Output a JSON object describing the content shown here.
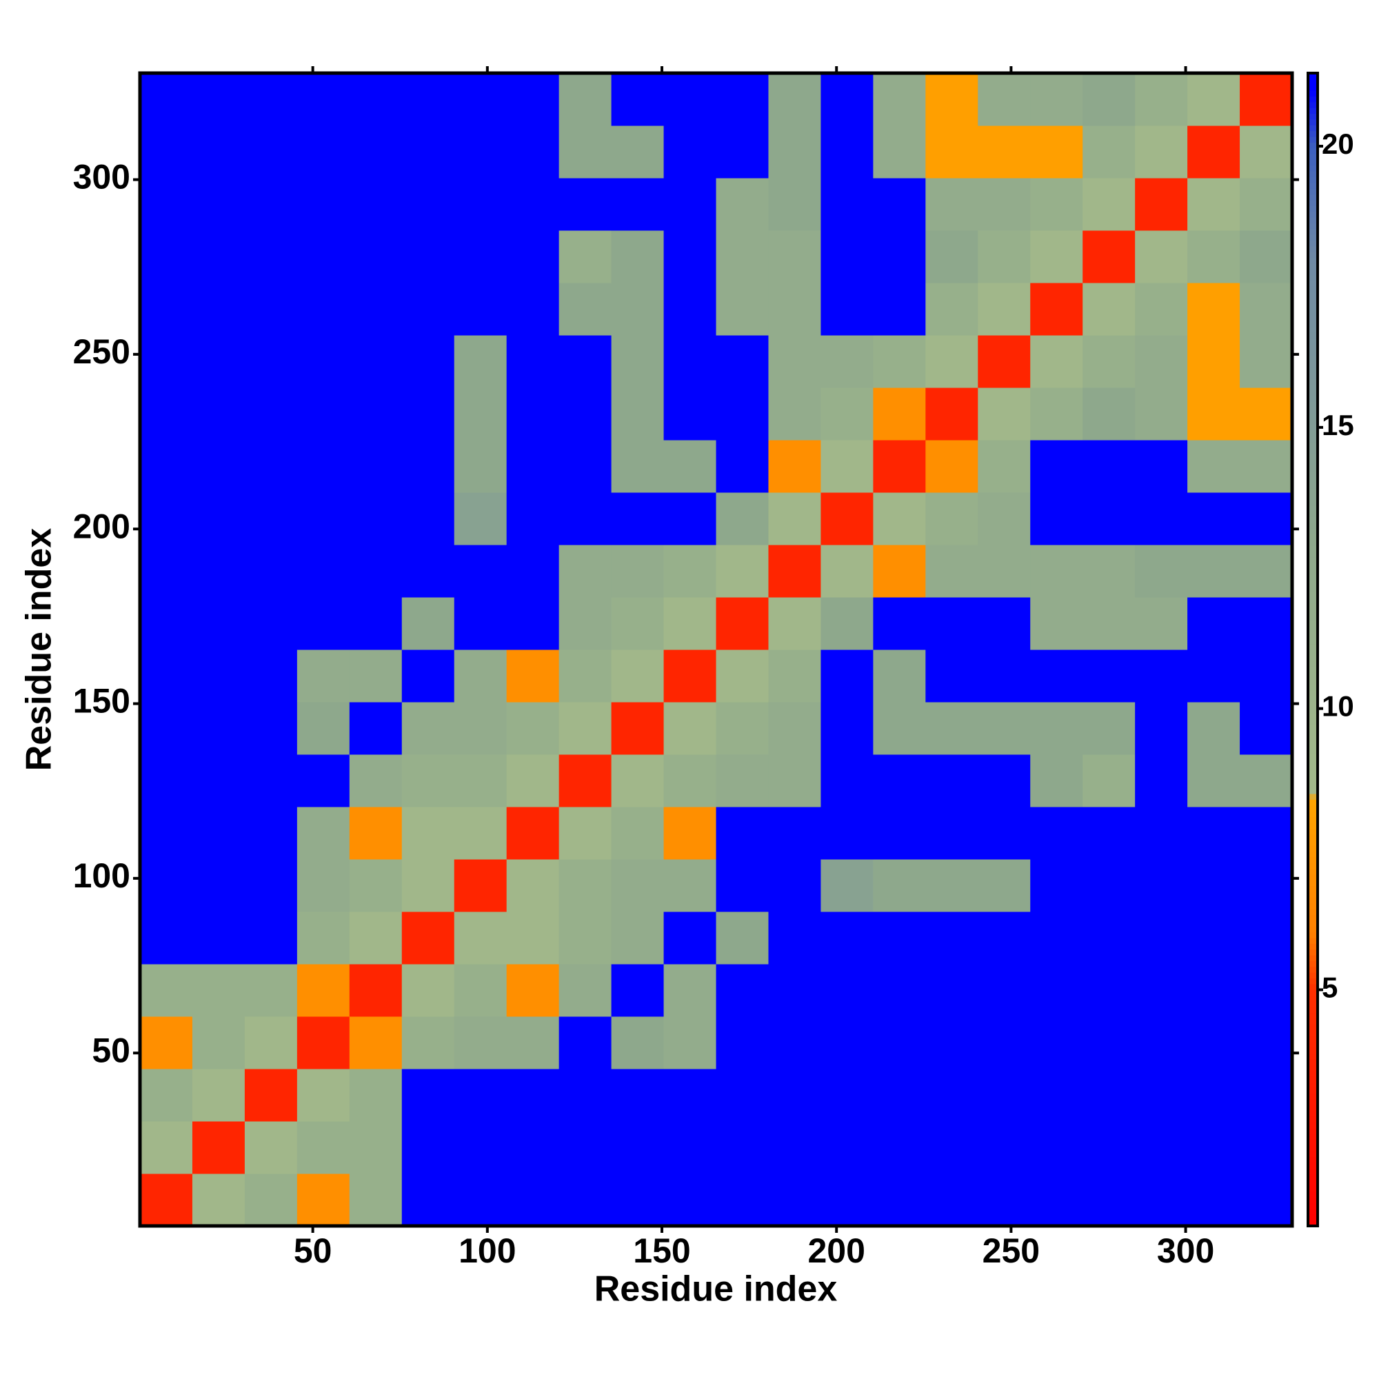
{
  "chart_data": {
    "type": "heatmap",
    "xlabel": "Residue index",
    "ylabel": "Residue index",
    "x": [
      1,
      16,
      31,
      46,
      61,
      76,
      91,
      106,
      121,
      136,
      151,
      166,
      181,
      196,
      211,
      226,
      241,
      256,
      271,
      286,
      301,
      316
    ],
    "y": [
      1,
      16,
      31,
      46,
      61,
      76,
      91,
      106,
      121,
      136,
      151,
      166,
      181,
      196,
      211,
      226,
      241,
      256,
      271,
      286,
      301,
      316
    ],
    "z": [
      [
        4,
        9,
        11,
        7,
        11,
        21,
        21,
        21,
        21,
        21,
        21,
        21,
        21,
        21,
        21,
        21,
        21,
        21,
        21,
        21,
        21,
        21
      ],
      [
        9,
        4,
        9,
        11,
        11,
        21,
        21,
        21,
        21,
        21,
        21,
        21,
        21,
        21,
        21,
        21,
        21,
        21,
        21,
        21,
        21,
        21
      ],
      [
        11,
        9,
        4,
        9,
        11,
        21,
        21,
        21,
        21,
        21,
        21,
        21,
        21,
        21,
        21,
        21,
        21,
        21,
        21,
        21,
        21,
        21
      ],
      [
        7,
        11,
        9,
        4,
        7,
        11,
        12,
        12,
        21,
        13,
        12,
        21,
        21,
        21,
        21,
        21,
        21,
        21,
        21,
        21,
        21,
        21
      ],
      [
        11,
        11,
        11,
        7,
        4,
        9,
        11,
        7,
        12,
        21,
        12,
        21,
        21,
        21,
        21,
        21,
        21,
        21,
        21,
        21,
        21,
        21
      ],
      [
        21,
        21,
        21,
        11,
        9,
        4,
        9,
        9,
        11,
        12,
        21,
        13,
        21,
        21,
        21,
        21,
        21,
        21,
        21,
        21,
        21,
        21
      ],
      [
        21,
        21,
        21,
        12,
        11,
        9,
        4,
        9,
        11,
        12,
        12,
        21,
        21,
        14,
        13,
        13,
        13,
        21,
        21,
        21,
        21,
        21
      ],
      [
        21,
        21,
        21,
        12,
        7,
        9,
        9,
        4,
        9,
        11,
        7,
        21,
        21,
        21,
        21,
        21,
        21,
        21,
        21,
        21,
        21,
        21
      ],
      [
        21,
        21,
        21,
        21,
        12,
        11,
        11,
        9,
        4,
        9,
        11,
        12,
        12,
        21,
        21,
        21,
        21,
        13,
        11,
        21,
        13,
        13
      ],
      [
        21,
        21,
        21,
        13,
        21,
        12,
        12,
        11,
        9,
        4,
        9,
        11,
        12,
        21,
        13,
        13,
        13,
        13,
        13,
        21,
        13,
        21
      ],
      [
        21,
        21,
        21,
        12,
        12,
        21,
        12,
        7,
        11,
        9,
        4,
        9,
        11,
        21,
        13,
        21,
        21,
        21,
        21,
        21,
        21,
        21
      ],
      [
        21,
        21,
        21,
        21,
        21,
        13,
        21,
        21,
        12,
        11,
        9,
        4,
        9,
        13,
        21,
        21,
        21,
        12,
        12,
        12,
        21,
        21
      ],
      [
        21,
        21,
        21,
        21,
        21,
        21,
        21,
        21,
        12,
        12,
        11,
        9,
        4,
        9,
        7,
        12,
        12,
        12,
        12,
        13,
        13,
        13
      ],
      [
        21,
        21,
        21,
        21,
        21,
        21,
        14,
        21,
        21,
        21,
        21,
        13,
        9,
        4,
        9,
        11,
        12,
        21,
        21,
        21,
        21,
        21
      ],
      [
        21,
        21,
        21,
        21,
        21,
        21,
        13,
        21,
        21,
        13,
        13,
        21,
        7,
        9,
        4,
        7,
        11,
        21,
        21,
        21,
        12,
        12
      ],
      [
        21,
        21,
        21,
        21,
        21,
        21,
        13,
        21,
        21,
        13,
        21,
        21,
        12,
        11,
        7,
        4,
        9,
        11,
        13,
        12,
        8,
        8
      ],
      [
        21,
        21,
        21,
        21,
        21,
        21,
        13,
        21,
        21,
        13,
        21,
        21,
        12,
        12,
        11,
        9,
        4,
        9,
        11,
        12,
        8,
        12
      ],
      [
        21,
        21,
        21,
        21,
        21,
        21,
        21,
        21,
        13,
        13,
        21,
        12,
        12,
        21,
        21,
        11,
        9,
        4,
        9,
        11,
        8,
        12
      ],
      [
        21,
        21,
        21,
        21,
        21,
        21,
        21,
        21,
        11,
        13,
        21,
        12,
        12,
        21,
        21,
        13,
        11,
        9,
        4,
        9,
        11,
        13
      ],
      [
        21,
        21,
        21,
        21,
        21,
        21,
        21,
        21,
        21,
        21,
        21,
        12,
        13,
        21,
        21,
        12,
        12,
        11,
        9,
        4,
        9,
        11
      ],
      [
        21,
        21,
        21,
        21,
        21,
        21,
        21,
        21,
        13,
        13,
        21,
        21,
        13,
        21,
        12,
        8,
        8,
        8,
        11,
        9,
        4,
        9
      ],
      [
        21,
        21,
        21,
        21,
        21,
        21,
        21,
        21,
        13,
        21,
        21,
        21,
        13,
        21,
        12,
        8,
        12,
        12,
        13,
        11,
        9,
        4
      ]
    ],
    "xlim": [
      0.5,
      330.5
    ],
    "ylim": [
      0.5,
      330.5
    ],
    "xticks": [
      50,
      100,
      150,
      200,
      250,
      300
    ],
    "yticks": [
      50,
      100,
      150,
      200,
      250,
      300
    ],
    "zlim": [
      0.8,
      21.3
    ],
    "zticks": [
      5,
      10,
      15,
      20
    ],
    "colorscale": [
      [
        0.8,
        "#ff0000"
      ],
      [
        5,
        "#ff3000"
      ],
      [
        6,
        "#ff8000"
      ],
      [
        8.4,
        "#ffa500"
      ],
      [
        8.5,
        "#a3b98a"
      ],
      [
        13,
        "#8ea88c"
      ],
      [
        18,
        "#6f8aa5"
      ],
      [
        20,
        "#3c5fc0"
      ],
      [
        21,
        "#0000ff"
      ]
    ]
  }
}
